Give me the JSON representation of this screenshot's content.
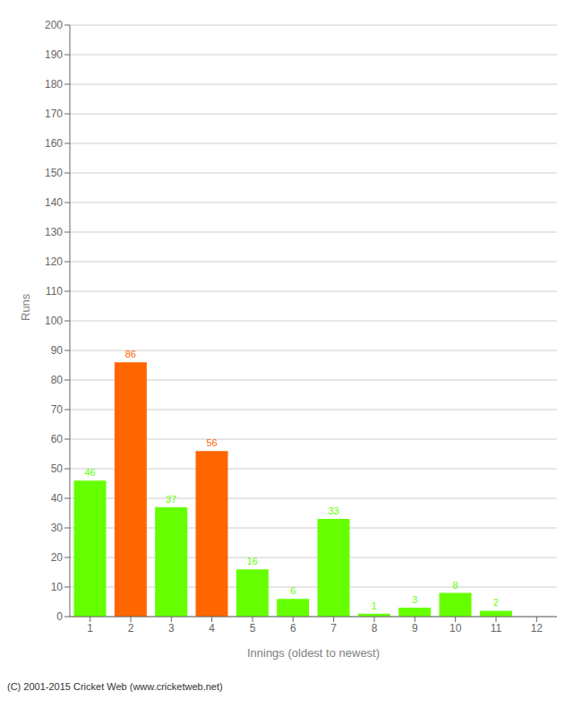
{
  "chart_data": {
    "type": "bar",
    "categories": [
      "1",
      "2",
      "3",
      "4",
      "5",
      "6",
      "7",
      "8",
      "9",
      "10",
      "11",
      "12"
    ],
    "values": [
      46,
      86,
      37,
      56,
      16,
      6,
      33,
      1,
      3,
      8,
      2,
      0
    ],
    "colors": [
      "#66ff00",
      "#ff6600",
      "#66ff00",
      "#ff6600",
      "#66ff00",
      "#66ff00",
      "#66ff00",
      "#66ff00",
      "#66ff00",
      "#66ff00",
      "#66ff00",
      "#66ff00"
    ],
    "xlabel": "Innings (oldest to newest)",
    "ylabel": "Runs",
    "ylim": [
      0,
      200
    ],
    "yticks": [
      0,
      10,
      20,
      30,
      40,
      50,
      60,
      70,
      80,
      90,
      100,
      110,
      120,
      130,
      140,
      150,
      160,
      170,
      180,
      190,
      200
    ],
    "grid": true,
    "data_labels": true,
    "annotations": [
      "(C) 2001-2015 Cricket Web (www.cricketweb.net)"
    ]
  }
}
